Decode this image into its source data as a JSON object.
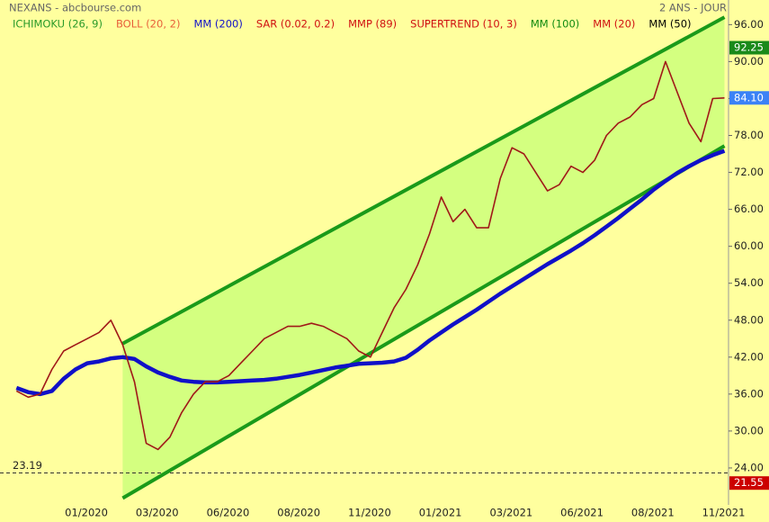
{
  "chart_data": {
    "type": "line",
    "title": "NEXANS - abcbourse.com",
    "period": "2 ANS - JOUR",
    "indicators": [
      {
        "name": "ICHIMOKU (26, 9)",
        "color": "#2a9a2a"
      },
      {
        "name": "BOLL (20, 2)",
        "color": "#e8603a"
      },
      {
        "name": "MM (200)",
        "color": "#1010c8"
      },
      {
        "name": "SAR (0.02, 0.2)",
        "color": "#d01010"
      },
      {
        "name": "MMP (89)",
        "color": "#d01010"
      },
      {
        "name": "SUPERTREND (10, 3)",
        "color": "#d01010"
      },
      {
        "name": "MM (100)",
        "color": "#108a10"
      },
      {
        "name": "MM (20)",
        "color": "#d01010"
      },
      {
        "name": "MM (50)",
        "color": "#000000"
      }
    ],
    "categories": [
      null,
      null,
      null,
      null,
      null,
      null,
      "01/2020",
      null,
      null,
      null,
      null,
      null,
      "03/2020",
      null,
      null,
      null,
      null,
      null,
      "06/2020",
      null,
      null,
      null,
      null,
      null,
      "08/2020",
      null,
      null,
      null,
      null,
      null,
      "11/2020",
      null,
      null,
      null,
      null,
      null,
      "01/2021",
      null,
      null,
      null,
      null,
      null,
      "03/2021",
      null,
      null,
      null,
      null,
      null,
      "06/2021",
      null,
      null,
      null,
      null,
      null,
      "08/2021",
      null,
      null,
      null,
      null,
      null,
      "11/2021"
    ],
    "series": [
      {
        "type": "trendline",
        "color": "#1a9a1a",
        "values": [
          null,
          null,
          null,
          null,
          null,
          null,
          null,
          null,
          null,
          44.2,
          null,
          null,
          null,
          null,
          null,
          null,
          null,
          null,
          null,
          null,
          null,
          null,
          null,
          null,
          null,
          null,
          null,
          null,
          null,
          null,
          null,
          null,
          null,
          null,
          null,
          null,
          null,
          null,
          null,
          null,
          null,
          null,
          null,
          null,
          null,
          null,
          null,
          null,
          null,
          null,
          null,
          null,
          null,
          null,
          null,
          null,
          null,
          null,
          null,
          null,
          97.2
        ]
      },
      {
        "type": "trendline",
        "color": "#1a9a1a",
        "values": [
          null,
          null,
          null,
          null,
          null,
          null,
          null,
          null,
          null,
          19.1,
          null,
          null,
          null,
          null,
          null,
          null,
          null,
          null,
          null,
          null,
          null,
          null,
          null,
          null,
          null,
          null,
          null,
          null,
          null,
          null,
          null,
          null,
          null,
          null,
          null,
          null,
          null,
          null,
          null,
          null,
          null,
          null,
          null,
          null,
          null,
          null,
          null,
          null,
          null,
          null,
          null,
          null,
          null,
          null,
          null,
          null,
          null,
          null,
          null,
          null,
          76.3
        ]
      },
      {
        "type": "line",
        "color": "#1010c8",
        "values": [
          37,
          36.3,
          36,
          36.5,
          38.5,
          40,
          41,
          41.3,
          41.8,
          42,
          41.7,
          40.5,
          39.5,
          38.8,
          38.2,
          38,
          37.9,
          37.9,
          38,
          38.1,
          38.2,
          38.3,
          38.5,
          38.8,
          39.1,
          39.5,
          39.9,
          40.3,
          40.6,
          40.9,
          41,
          41.1,
          41.3,
          41.9,
          43.2,
          44.7,
          46,
          47.3,
          48.5,
          49.7,
          51,
          52.3,
          53.5,
          54.7,
          55.9,
          57.1,
          58.2,
          59.3,
          60.5,
          61.8,
          63.2,
          64.6,
          66.1,
          67.6,
          69.2,
          70.6,
          71.9,
          73,
          74,
          74.8,
          75.5
        ]
      },
      {
        "type": "line",
        "color": "#a01818",
        "values": [
          36.5,
          35.5,
          36,
          40,
          43,
          44,
          45,
          46,
          48,
          44,
          38,
          28,
          27,
          29,
          33,
          36,
          38,
          38,
          39,
          41,
          43,
          45,
          46,
          47,
          47,
          47.5,
          47,
          46,
          45,
          43,
          42,
          46,
          50,
          53,
          57,
          62,
          68,
          64,
          66,
          63,
          63,
          71,
          76,
          75,
          72,
          69,
          70,
          73,
          72,
          74,
          78,
          80,
          81,
          83,
          84,
          90,
          85,
          80,
          77,
          84,
          84.1
        ]
      }
    ],
    "channel_fill": "#ccff7a",
    "ylim": [
      18,
      100
    ],
    "yticks": [
      {
        "value": 24,
        "label": "24.00"
      },
      {
        "value": 30,
        "label": "30.00"
      },
      {
        "value": 36,
        "label": "36.00"
      },
      {
        "value": 42,
        "label": "42.00"
      },
      {
        "value": 48,
        "label": "48.00"
      },
      {
        "value": 54,
        "label": "54.00"
      },
      {
        "value": 60,
        "label": "60.00"
      },
      {
        "value": 66,
        "label": "66.00"
      },
      {
        "value": 72,
        "label": "72.00"
      },
      {
        "value": 78,
        "label": "78.00"
      },
      {
        "value": 84,
        "label": "84.00"
      },
      {
        "value": 90,
        "label": "90.00"
      },
      {
        "value": 96,
        "label": "96.00"
      }
    ],
    "levels": [
      {
        "value": 23.19,
        "label": "23.19"
      }
    ],
    "price_tags": [
      {
        "value": 92.25,
        "label": "92.25",
        "color": "#1a8a1a"
      },
      {
        "value": 84.1,
        "label": "84.10",
        "color": "#3b82f6"
      },
      {
        "value": 21.55,
        "label": "21.55",
        "color": "#cc0000"
      }
    ]
  }
}
